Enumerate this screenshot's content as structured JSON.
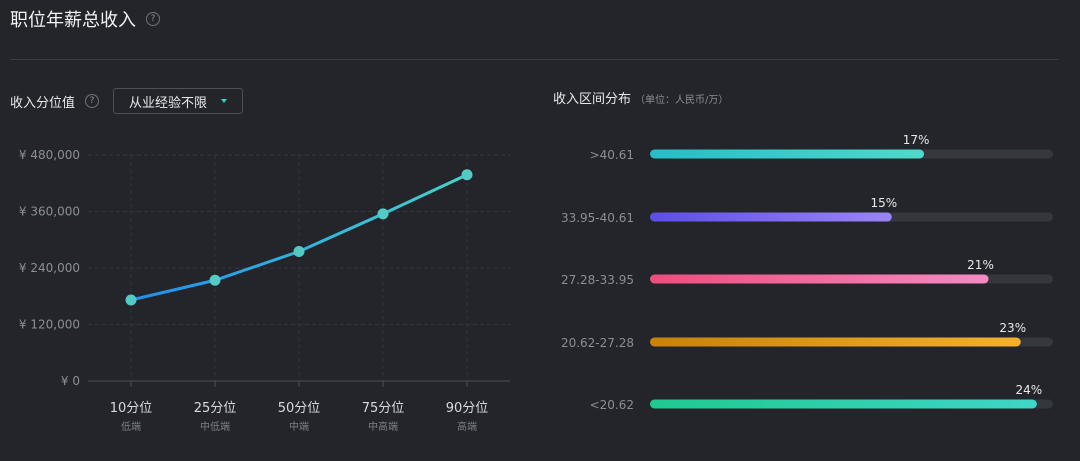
{
  "header": {
    "title": "职位年薪总收入",
    "help": "?"
  },
  "left": {
    "title": "收入分位值",
    "help": "?",
    "select_value": "从业经验不限"
  },
  "right": {
    "title": "收入区间分布",
    "unit": "（单位：人民币/万）"
  },
  "colors": {
    "line_start": "#1e8ff0",
    "line_end": "#45d3c9",
    "point": "#52cbc4",
    "track": "#34373e"
  },
  "chart_data": [
    {
      "type": "line",
      "ylim": [
        0,
        480000
      ],
      "y_ticks": [
        0,
        120000,
        240000,
        360000,
        480000
      ],
      "y_tick_labels": [
        "¥ 0",
        "¥ 120,000",
        "¥ 240,000",
        "¥ 360,000",
        "¥ 480,000"
      ],
      "categories": [
        "10分位",
        "25分位",
        "50分位",
        "75分位",
        "90分位"
      ],
      "sub_labels": [
        "低端",
        "中低端",
        "中端",
        "中高端",
        "高端"
      ],
      "values": [
        172000,
        214000,
        275000,
        355000,
        438000
      ],
      "grid": true
    },
    {
      "type": "bar",
      "orientation": "horizontal",
      "categories": [
        ">40.61",
        "33.95-40.61",
        "27.28-33.95",
        "20.62-27.28",
        "<20.62"
      ],
      "values": [
        17,
        15,
        21,
        23,
        24
      ],
      "labels": [
        "17%",
        "15%",
        "21%",
        "23%",
        "24%"
      ],
      "xlim": [
        0,
        25
      ],
      "colors": [
        [
          "#28bcc6",
          "#4fd9cc"
        ],
        [
          "#5c4ee6",
          "#9b85f5"
        ],
        [
          "#ef4d7c",
          "#f58ac3"
        ],
        [
          "#c88208",
          "#f5b02c"
        ],
        [
          "#1fc98f",
          "#3fd6c6"
        ]
      ]
    }
  ]
}
